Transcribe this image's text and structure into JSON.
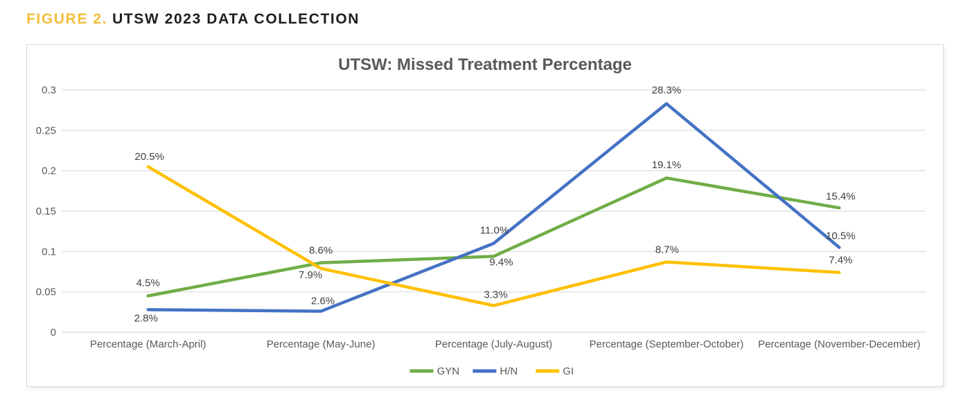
{
  "header": {
    "figure_label": "FIGURE 2.",
    "title": "UTSW 2023 DATA COLLECTION"
  },
  "colors": {
    "figure_label_gold": "#F2BE3A",
    "header_text": "#1D1D1D",
    "chart_title_text": "#595959",
    "axis_text": "#595959",
    "data_label_text": "#404040",
    "gridline": "#D9D9D9",
    "chart_border": "#D9D9D9",
    "series_gyn": "#70AD47",
    "series_hn": "#4472C4",
    "series_gi": "#FFC000"
  },
  "chart_data": {
    "type": "line",
    "title": "UTSW: Missed Treatment Percentage",
    "categories": [
      "Percentage (March-April)",
      "Percentage (May-June)",
      "Percentage (July-August)",
      "Percentage (September-October)",
      "Percentage (November-December)"
    ],
    "series": [
      {
        "name": "GYN",
        "color": "#70AD47",
        "values": [
          0.045,
          0.086,
          0.094,
          0.191,
          0.154
        ],
        "point_labels": [
          "4.5%",
          "8.6%",
          "9.4%",
          "19.1%",
          "15.4%"
        ]
      },
      {
        "name": "H/N",
        "color": "#4472C4",
        "values": [
          0.028,
          0.026,
          0.11,
          0.283,
          0.105
        ],
        "point_labels": [
          "2.8%",
          "2.6%",
          "11.0%",
          "28.3%",
          "10.5%"
        ]
      },
      {
        "name": "GI",
        "color": "#FFC000",
        "values": [
          0.205,
          0.079,
          0.033,
          0.087,
          0.074
        ],
        "point_labels": [
          "20.5%",
          "7.9%",
          "3.3%",
          "8.7%",
          "7.4%"
        ]
      }
    ],
    "ylim": [
      0,
      0.3
    ],
    "y_ticks": [
      0,
      0.05,
      0.1,
      0.15,
      0.2,
      0.25,
      0.3
    ],
    "y_tick_labels": [
      "0",
      "0.05",
      "0.1",
      "0.15",
      "0.2",
      "0.25",
      "0.3"
    ],
    "grid": true,
    "legend_position": "bottom"
  }
}
